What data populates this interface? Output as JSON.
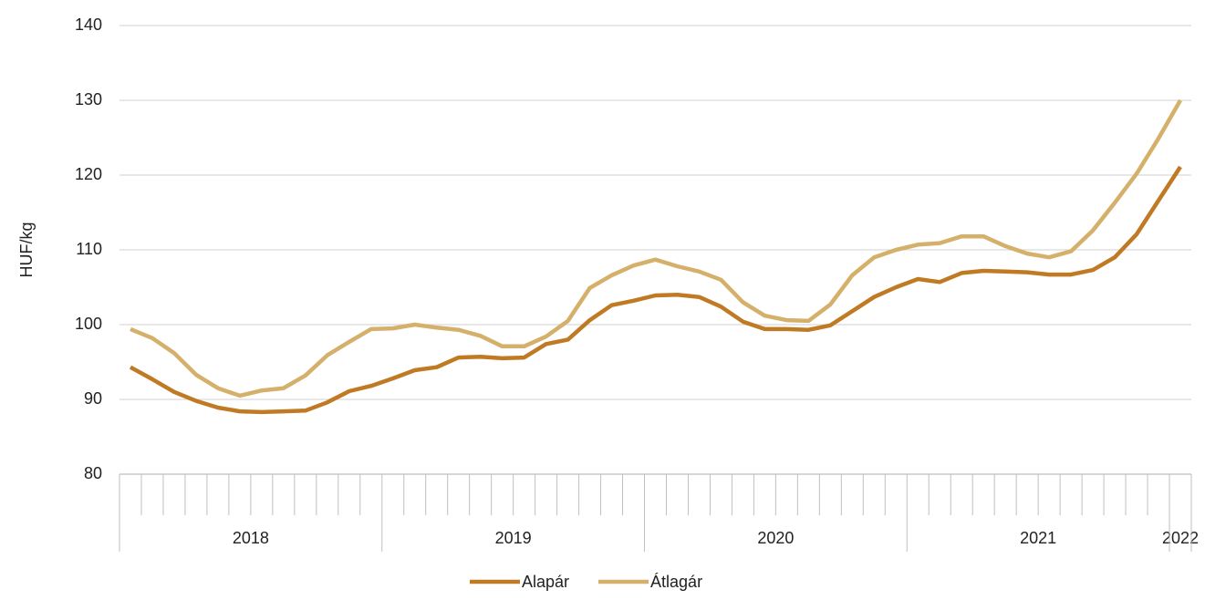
{
  "chart_data": {
    "type": "line",
    "y_label": "HUF/kg",
    "categories": [
      null,
      null,
      null,
      null,
      null,
      null,
      null,
      null,
      null,
      null,
      null,
      null,
      null,
      null,
      null,
      null,
      null,
      null,
      null,
      null,
      null,
      null,
      null,
      null,
      null,
      null,
      null,
      null,
      null,
      null,
      null,
      null,
      null,
      null,
      null,
      null,
      null,
      null,
      null,
      null,
      null,
      null,
      null,
      null,
      null,
      null,
      null,
      null,
      null
    ],
    "groups": [
      {
        "label": "2018",
        "span": 12
      },
      {
        "label": "2019",
        "span": 12
      },
      {
        "label": "2020",
        "span": 12
      },
      {
        "label": "2021",
        "span": 12
      },
      {
        "label": "2022",
        "span": 1
      }
    ],
    "series": [
      {
        "name": "Alapár",
        "color": "#c07a24",
        "values": [
          94.3,
          92.7,
          91.0,
          89.8,
          88.9,
          88.4,
          88.3,
          88.4,
          88.5,
          89.6,
          91.1,
          91.8,
          92.8,
          93.9,
          94.3,
          95.6,
          95.7,
          95.5,
          95.6,
          97.4,
          98.0,
          100.6,
          102.6,
          103.2,
          103.9,
          104.0,
          103.7,
          102.4,
          100.4,
          99.4,
          99.4,
          99.3,
          99.9,
          101.8,
          103.7,
          105.0,
          106.1,
          105.7,
          106.9,
          107.2,
          107.1,
          107.0,
          106.7,
          106.7,
          107.3,
          109.0,
          112.1,
          116.6,
          121.1
        ]
      },
      {
        "name": "Átlagár",
        "color": "#d4b06a",
        "values": [
          99.4,
          98.2,
          96.2,
          93.3,
          91.5,
          90.5,
          91.2,
          91.5,
          93.2,
          95.9,
          97.7,
          99.4,
          99.5,
          100.0,
          99.6,
          99.3,
          98.5,
          97.1,
          97.1,
          98.4,
          100.5,
          104.9,
          106.6,
          107.9,
          108.7,
          107.8,
          107.1,
          106.0,
          103.0,
          101.2,
          100.6,
          100.5,
          102.7,
          106.6,
          109.0,
          110.0,
          110.7,
          110.9,
          111.8,
          111.8,
          110.5,
          109.5,
          109.0,
          109.8,
          112.6,
          116.3,
          120.2,
          124.9,
          130.0
        ]
      }
    ],
    "ylim": [
      80,
      140
    ],
    "yticks": [
      80,
      90,
      100,
      110,
      120,
      130,
      140
    ],
    "grid": true,
    "legend": "bottom"
  }
}
